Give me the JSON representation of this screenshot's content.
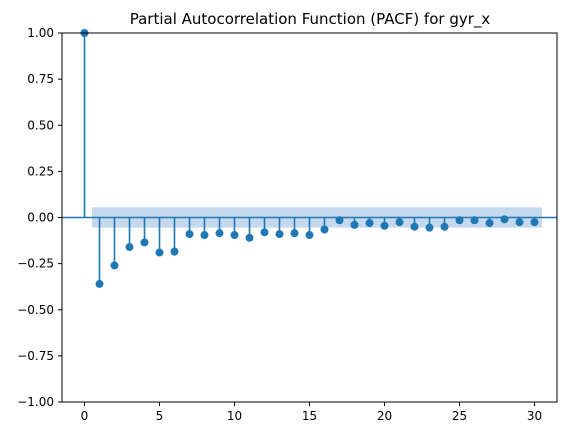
{
  "chart_data": {
    "type": "scatter",
    "title": "Partial Autocorrelation Function (PACF) for gyr_x",
    "xlabel": "",
    "ylabel": "",
    "xlim": [
      -1.5,
      31.5
    ],
    "ylim": [
      -1.0,
      1.0
    ],
    "x_ticks": [
      0,
      5,
      10,
      15,
      20,
      25,
      30
    ],
    "y_ticks": [
      -1.0,
      -0.75,
      -0.5,
      -0.25,
      0.0,
      0.25,
      0.5,
      0.75,
      1.0
    ],
    "x_tick_labels": [
      "0",
      "5",
      "10",
      "15",
      "20",
      "25",
      "30"
    ],
    "y_tick_labels": [
      "−1.00",
      "−0.75",
      "−0.50",
      "−0.25",
      "0.00",
      "0.25",
      "0.50",
      "0.75",
      "1.00"
    ],
    "grid": false,
    "colors": {
      "series": "#1f77b4",
      "confidence_band": "#c5d9ee"
    },
    "confidence_band": {
      "x_range": [
        0.5,
        30.5
      ],
      "lower": -0.055,
      "upper": 0.055
    },
    "series": [
      {
        "style": "stem",
        "x": [
          0,
          1,
          2,
          3,
          4,
          5,
          6,
          7,
          8,
          9,
          10,
          11,
          12,
          13,
          14,
          15,
          16,
          17,
          18,
          19,
          20,
          21,
          22,
          23,
          24,
          25,
          26,
          27,
          28,
          29,
          30
        ],
        "values": [
          1.0,
          -0.36,
          -0.26,
          -0.16,
          -0.135,
          -0.19,
          -0.185,
          -0.09,
          -0.095,
          -0.085,
          -0.095,
          -0.11,
          -0.08,
          -0.09,
          -0.085,
          -0.095,
          -0.065,
          -0.015,
          -0.04,
          -0.03,
          -0.045,
          -0.025,
          -0.05,
          -0.055,
          -0.05,
          -0.015,
          -0.015,
          -0.03,
          -0.01,
          -0.025,
          -0.025
        ]
      }
    ]
  }
}
